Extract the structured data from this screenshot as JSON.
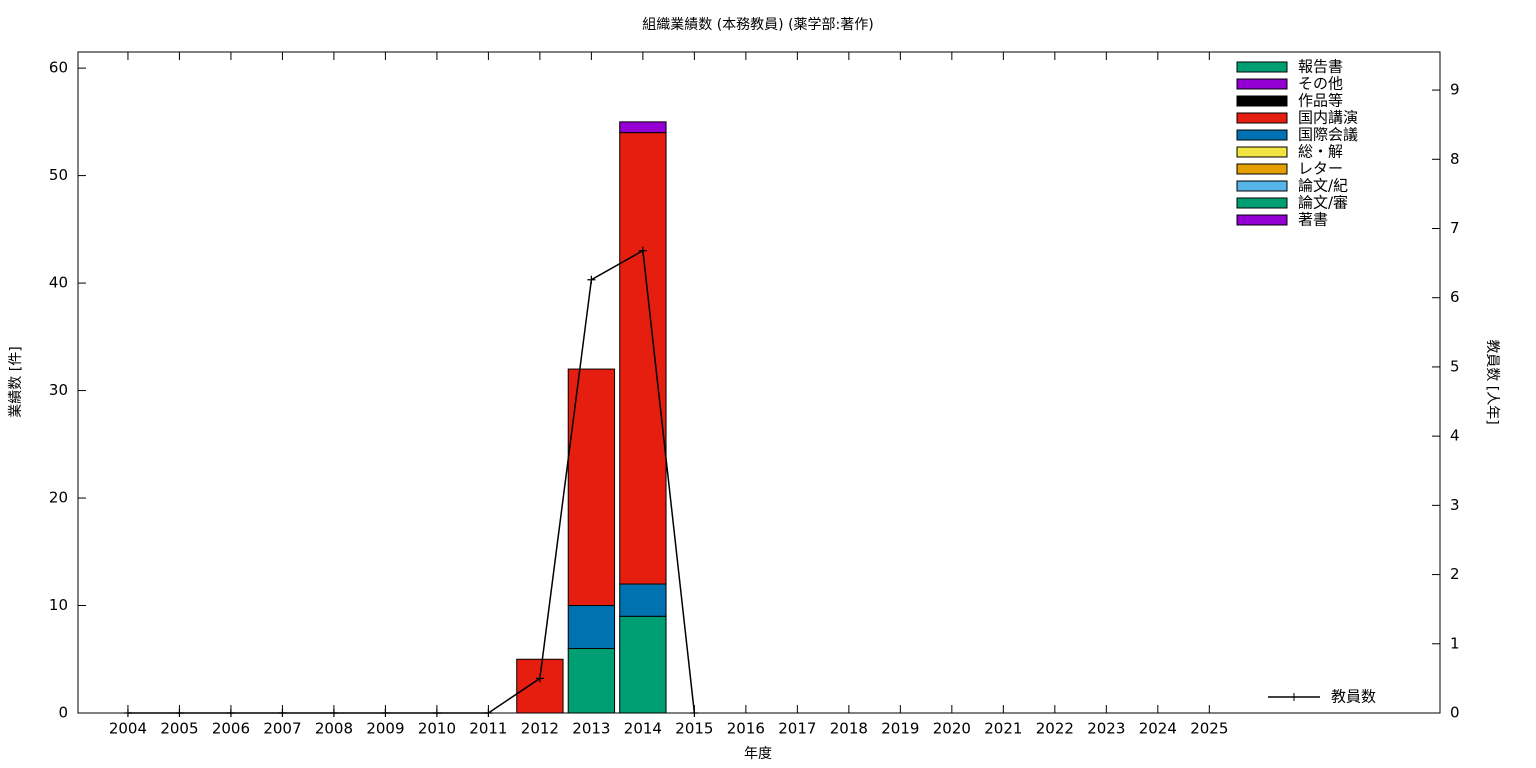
{
  "chart_data": {
    "type": "bar",
    "stacked": true,
    "title": "組織業績数 (本務教員) (薬学部:著作)",
    "x_label": "年度",
    "y_label": "業績数 [件]",
    "y2_label": "教員数 [人年]",
    "x": [
      2004,
      2005,
      2006,
      2007,
      2008,
      2009,
      2010,
      2011,
      2012,
      2013,
      2014,
      2015,
      2016,
      2017,
      2018,
      2019,
      2020,
      2021,
      2022,
      2023,
      2024,
      2025
    ],
    "xlim": [
      2003.03,
      2029.48
    ],
    "xticks": [
      2004,
      2005,
      2006,
      2007,
      2008,
      2009,
      2010,
      2011,
      2012,
      2013,
      2014,
      2015,
      2016,
      2017,
      2018,
      2019,
      2020,
      2021,
      2022,
      2023,
      2024,
      2025
    ],
    "ylim": [
      0,
      61.5
    ],
    "yticks": [
      0,
      10,
      20,
      30,
      40,
      50,
      60
    ],
    "y2lim": [
      0,
      9.55
    ],
    "y2ticks": [
      0,
      1,
      2,
      3,
      4,
      5,
      6,
      7,
      8,
      9
    ],
    "legend": "top right",
    "series": [
      {
        "name": "著書",
        "color": "#9400d3",
        "values": [
          0,
          0,
          0,
          0,
          0,
          0,
          0,
          0,
          0,
          0,
          0,
          0,
          0,
          0,
          0,
          0,
          0,
          0,
          0,
          0,
          0,
          0
        ]
      },
      {
        "name": "論文/審",
        "color": "#009e73",
        "values": [
          0,
          0,
          0,
          0,
          0,
          0,
          0,
          0,
          0,
          6,
          9,
          0,
          0,
          0,
          0,
          0,
          0,
          0,
          0,
          0,
          0,
          0
        ]
      },
      {
        "name": "論文/紀",
        "color": "#56b4e9",
        "values": [
          0,
          0,
          0,
          0,
          0,
          0,
          0,
          0,
          0,
          0,
          0,
          0,
          0,
          0,
          0,
          0,
          0,
          0,
          0,
          0,
          0,
          0
        ]
      },
      {
        "name": "レター",
        "color": "#e69f00",
        "values": [
          0,
          0,
          0,
          0,
          0,
          0,
          0,
          0,
          0,
          0,
          0,
          0,
          0,
          0,
          0,
          0,
          0,
          0,
          0,
          0,
          0,
          0
        ]
      },
      {
        "name": "総・解",
        "color": "#f0e442",
        "values": [
          0,
          0,
          0,
          0,
          0,
          0,
          0,
          0,
          0,
          0,
          0,
          0,
          0,
          0,
          0,
          0,
          0,
          0,
          0,
          0,
          0,
          0
        ]
      },
      {
        "name": "国際会議",
        "color": "#0072b2",
        "values": [
          0,
          0,
          0,
          0,
          0,
          0,
          0,
          0,
          0,
          4,
          3,
          0,
          0,
          0,
          0,
          0,
          0,
          0,
          0,
          0,
          0,
          0
        ]
      },
      {
        "name": "国内講演",
        "color": "#e51e10",
        "values": [
          0,
          0,
          0,
          0,
          0,
          0,
          0,
          0,
          5,
          22,
          42,
          0,
          0,
          0,
          0,
          0,
          0,
          0,
          0,
          0,
          0,
          0
        ]
      },
      {
        "name": "作品等",
        "color": "#000000",
        "values": [
          0,
          0,
          0,
          0,
          0,
          0,
          0,
          0,
          0,
          0,
          0,
          0,
          0,
          0,
          0,
          0,
          0,
          0,
          0,
          0,
          0,
          0
        ]
      },
      {
        "name": "その他",
        "color": "#9400d3",
        "values": [
          0,
          0,
          0,
          0,
          0,
          0,
          0,
          0,
          0,
          0,
          1,
          0,
          0,
          0,
          0,
          0,
          0,
          0,
          0,
          0,
          0,
          0
        ]
      },
      {
        "name": "報告書",
        "color": "#009e73",
        "values": [
          0,
          0,
          0,
          0,
          0,
          0,
          0,
          0,
          0,
          0,
          0,
          0,
          0,
          0,
          0,
          0,
          0,
          0,
          0,
          0,
          0,
          0
        ]
      }
    ],
    "line": {
      "name": "教員数",
      "color": "#000000",
      "axis": "y2",
      "legend": "bottom right",
      "values": [
        0,
        0,
        0,
        0,
        0,
        0,
        0,
        0,
        0.5,
        6.26,
        6.68,
        0,
        null,
        null,
        null,
        null,
        null,
        null,
        null,
        null,
        null,
        null
      ]
    }
  }
}
